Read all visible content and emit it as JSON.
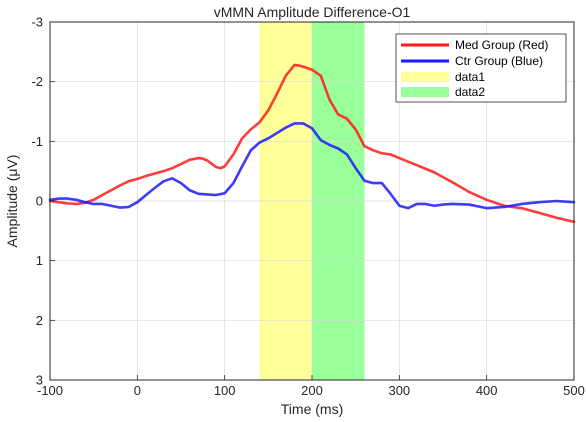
{
  "chart_data": {
    "type": "line",
    "title": "vMMN Amplitude Difference-O1",
    "xlabel": "Time (ms)",
    "ylabel": "Amplitude (μV)",
    "xlim": [
      -100,
      500
    ],
    "ylim": [
      -3,
      3
    ],
    "y_reversed": true,
    "grid": true,
    "legend_position": "top-right",
    "x_ticks": [
      -100,
      0,
      100,
      200,
      300,
      400,
      500
    ],
    "y_ticks": [
      -3,
      -2,
      -1,
      0,
      1,
      2,
      3
    ],
    "shaded_regions": [
      {
        "name": "data1",
        "x0": 140,
        "x1": 200,
        "color": "#ffff99"
      },
      {
        "name": "data2",
        "x0": 200,
        "x1": 260,
        "color": "#99ff99"
      }
    ],
    "series": [
      {
        "name": "Med Group (Red)",
        "color": "#ff1a1a",
        "x": [
          -100,
          -90,
          -80,
          -70,
          -60,
          -50,
          -40,
          -30,
          -20,
          -10,
          0,
          10,
          20,
          30,
          40,
          50,
          60,
          70,
          75,
          80,
          90,
          95,
          100,
          110,
          120,
          130,
          140,
          150,
          160,
          170,
          180,
          185,
          190,
          200,
          210,
          220,
          230,
          240,
          250,
          260,
          270,
          280,
          290,
          300,
          320,
          340,
          360,
          380,
          400,
          420,
          440,
          460,
          480,
          500
        ],
        "y": [
          0.0,
          0.02,
          0.04,
          0.05,
          0.03,
          -0.02,
          -0.1,
          -0.18,
          -0.26,
          -0.33,
          -0.37,
          -0.42,
          -0.46,
          -0.5,
          -0.55,
          -0.62,
          -0.69,
          -0.72,
          -0.71,
          -0.68,
          -0.57,
          -0.55,
          -0.58,
          -0.78,
          -1.05,
          -1.2,
          -1.32,
          -1.52,
          -1.8,
          -2.1,
          -2.28,
          -2.27,
          -2.25,
          -2.2,
          -2.1,
          -1.7,
          -1.45,
          -1.38,
          -1.2,
          -0.92,
          -0.85,
          -0.8,
          -0.78,
          -0.72,
          -0.6,
          -0.48,
          -0.32,
          -0.15,
          -0.02,
          0.08,
          0.12,
          0.2,
          0.28,
          0.35
        ]
      },
      {
        "name": "Ctr Group (Blue)",
        "color": "#1a1aff",
        "x": [
          -100,
          -90,
          -80,
          -70,
          -60,
          -50,
          -40,
          -30,
          -20,
          -10,
          0,
          10,
          20,
          30,
          40,
          50,
          60,
          70,
          80,
          90,
          100,
          110,
          120,
          130,
          140,
          150,
          160,
          170,
          180,
          190,
          200,
          210,
          220,
          230,
          240,
          250,
          260,
          270,
          280,
          290,
          300,
          310,
          320,
          330,
          340,
          350,
          360,
          380,
          400,
          420,
          440,
          460,
          480,
          500
        ],
        "y": [
          -0.02,
          -0.04,
          -0.04,
          -0.02,
          0.02,
          0.05,
          0.05,
          0.08,
          0.11,
          0.1,
          0.02,
          -0.1,
          -0.22,
          -0.33,
          -0.38,
          -0.3,
          -0.18,
          -0.12,
          -0.11,
          -0.1,
          -0.13,
          -0.3,
          -0.58,
          -0.85,
          -0.98,
          -1.05,
          -1.14,
          -1.23,
          -1.3,
          -1.3,
          -1.22,
          -1.02,
          -0.94,
          -0.88,
          -0.78,
          -0.55,
          -0.34,
          -0.3,
          -0.3,
          -0.12,
          0.08,
          0.12,
          0.05,
          0.05,
          0.08,
          0.06,
          0.05,
          0.06,
          0.12,
          0.1,
          0.05,
          0.02,
          0.0,
          0.02
        ]
      }
    ]
  }
}
